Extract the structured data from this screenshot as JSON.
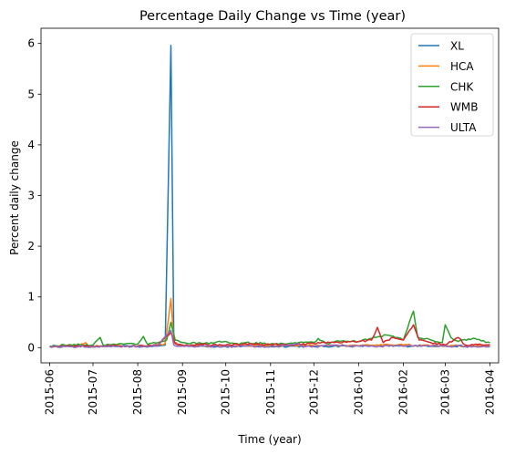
{
  "chart_data": {
    "type": "line",
    "title": "Percentage Daily Change vs Time (year)",
    "xlabel": "Time (year)",
    "ylabel": "Percent daily change",
    "x_range": [
      "2015-05-26",
      "2016-04-07"
    ],
    "ylim": [
      -0.3,
      6.3
    ],
    "grid": false,
    "legend_position": "top-right",
    "x_ticks": [
      "2015-06",
      "2015-07",
      "2015-08",
      "2015-09",
      "2015-10",
      "2015-11",
      "2015-12",
      "2016-01",
      "2016-02",
      "2016-03",
      "2016-04"
    ],
    "y_ticks": [
      0,
      1,
      2,
      3,
      4,
      5,
      6
    ],
    "series": [
      {
        "name": "XL",
        "color": "#1f77b4",
        "points": [
          [
            "2015-06-01",
            0.02
          ],
          [
            "2015-06-15",
            0.03
          ],
          [
            "2015-07-01",
            0.02
          ],
          [
            "2015-07-15",
            0.03
          ],
          [
            "2015-08-01",
            0.02
          ],
          [
            "2015-08-15",
            0.03
          ],
          [
            "2015-08-20",
            0.05
          ],
          [
            "2015-08-24",
            5.96
          ],
          [
            "2015-08-26",
            0.1
          ],
          [
            "2015-09-01",
            0.04
          ],
          [
            "2015-09-15",
            0.03
          ],
          [
            "2015-10-01",
            0.02
          ],
          [
            "2015-10-15",
            0.03
          ],
          [
            "2015-11-01",
            0.02
          ],
          [
            "2015-11-15",
            0.03
          ],
          [
            "2015-12-01",
            0.02
          ],
          [
            "2015-12-15",
            0.03
          ],
          [
            "2016-01-01",
            0.03
          ],
          [
            "2016-01-15",
            0.04
          ],
          [
            "2016-02-01",
            0.03
          ],
          [
            "2016-02-15",
            0.04
          ],
          [
            "2016-03-01",
            0.03
          ],
          [
            "2016-03-15",
            0.03
          ],
          [
            "2016-04-01",
            0.02
          ]
        ]
      },
      {
        "name": "HCA",
        "color": "#ff7f0e",
        "points": [
          [
            "2015-06-01",
            0.03
          ],
          [
            "2015-06-20",
            0.04
          ],
          [
            "2015-06-26",
            0.1
          ],
          [
            "2015-06-28",
            0.02
          ],
          [
            "2015-07-15",
            0.04
          ],
          [
            "2015-08-01",
            0.03
          ],
          [
            "2015-08-15",
            0.05
          ],
          [
            "2015-08-20",
            0.08
          ],
          [
            "2015-08-24",
            0.97
          ],
          [
            "2015-08-26",
            0.1
          ],
          [
            "2015-09-01",
            0.04
          ],
          [
            "2015-09-15",
            0.04
          ],
          [
            "2015-10-01",
            0.03
          ],
          [
            "2015-10-15",
            0.04
          ],
          [
            "2015-11-01",
            0.03
          ],
          [
            "2015-11-15",
            0.04
          ],
          [
            "2015-12-01",
            0.04
          ],
          [
            "2015-12-15",
            0.05
          ],
          [
            "2016-01-01",
            0.04
          ],
          [
            "2016-01-15",
            0.05
          ],
          [
            "2016-02-01",
            0.05
          ],
          [
            "2016-02-15",
            0.05
          ],
          [
            "2016-03-01",
            0.04
          ],
          [
            "2016-03-15",
            0.03
          ],
          [
            "2016-04-01",
            0.03
          ]
        ]
      },
      {
        "name": "CHK",
        "color": "#2ca02c",
        "points": [
          [
            "2015-06-01",
            0.03
          ],
          [
            "2015-06-15",
            0.06
          ],
          [
            "2015-07-01",
            0.05
          ],
          [
            "2015-07-06",
            0.2
          ],
          [
            "2015-07-08",
            0.05
          ],
          [
            "2015-07-20",
            0.08
          ],
          [
            "2015-08-01",
            0.07
          ],
          [
            "2015-08-05",
            0.22
          ],
          [
            "2015-08-08",
            0.06
          ],
          [
            "2015-08-15",
            0.1
          ],
          [
            "2015-08-21",
            0.15
          ],
          [
            "2015-08-24",
            0.5
          ],
          [
            "2015-08-27",
            0.15
          ],
          [
            "2015-09-01",
            0.1
          ],
          [
            "2015-09-15",
            0.08
          ],
          [
            "2015-10-01",
            0.12
          ],
          [
            "2015-10-10",
            0.06
          ],
          [
            "2015-10-15",
            0.1
          ],
          [
            "2015-11-01",
            0.07
          ],
          [
            "2015-11-15",
            0.09
          ],
          [
            "2015-12-01",
            0.1
          ],
          [
            "2015-12-04",
            0.18
          ],
          [
            "2015-12-10",
            0.08
          ],
          [
            "2015-12-20",
            0.13
          ],
          [
            "2016-01-01",
            0.12
          ],
          [
            "2016-01-10",
            0.18
          ],
          [
            "2016-01-20",
            0.25
          ],
          [
            "2016-01-28",
            0.2
          ],
          [
            "2016-02-01",
            0.15
          ],
          [
            "2016-02-08",
            0.72
          ],
          [
            "2016-02-11",
            0.2
          ],
          [
            "2016-02-20",
            0.15
          ],
          [
            "2016-02-28",
            0.1
          ],
          [
            "2016-03-01",
            0.45
          ],
          [
            "2016-03-05",
            0.2
          ],
          [
            "2016-03-10",
            0.12
          ],
          [
            "2016-03-20",
            0.18
          ],
          [
            "2016-04-01",
            0.1
          ]
        ]
      },
      {
        "name": "WMB",
        "color": "#d62728",
        "points": [
          [
            "2015-06-01",
            0.02
          ],
          [
            "2015-06-15",
            0.03
          ],
          [
            "2015-07-01",
            0.03
          ],
          [
            "2015-07-15",
            0.04
          ],
          [
            "2015-08-01",
            0.03
          ],
          [
            "2015-08-15",
            0.05
          ],
          [
            "2015-08-24",
            0.3
          ],
          [
            "2015-08-27",
            0.08
          ],
          [
            "2015-09-01",
            0.05
          ],
          [
            "2015-09-15",
            0.06
          ],
          [
            "2015-10-01",
            0.05
          ],
          [
            "2015-10-15",
            0.07
          ],
          [
            "2015-11-01",
            0.06
          ],
          [
            "2015-11-15",
            0.05
          ],
          [
            "2015-12-01",
            0.08
          ],
          [
            "2015-12-15",
            0.1
          ],
          [
            "2016-01-01",
            0.12
          ],
          [
            "2016-01-10",
            0.15
          ],
          [
            "2016-01-14",
            0.4
          ],
          [
            "2016-01-18",
            0.1
          ],
          [
            "2016-01-25",
            0.2
          ],
          [
            "2016-02-01",
            0.15
          ],
          [
            "2016-02-08",
            0.45
          ],
          [
            "2016-02-12",
            0.15
          ],
          [
            "2016-02-20",
            0.1
          ],
          [
            "2016-03-01",
            0.05
          ],
          [
            "2016-03-10",
            0.2
          ],
          [
            "2016-03-15",
            0.05
          ],
          [
            "2016-04-01",
            0.06
          ]
        ]
      },
      {
        "name": "ULTA",
        "color": "#9467bd",
        "points": [
          [
            "2015-06-01",
            0.02
          ],
          [
            "2015-06-15",
            0.02
          ],
          [
            "2015-07-01",
            0.02
          ],
          [
            "2015-07-15",
            0.03
          ],
          [
            "2015-08-01",
            0.02
          ],
          [
            "2015-08-15",
            0.04
          ],
          [
            "2015-08-24",
            0.34
          ],
          [
            "2015-08-26",
            0.05
          ],
          [
            "2015-09-01",
            0.03
          ],
          [
            "2015-09-15",
            0.03
          ],
          [
            "2015-10-01",
            0.02
          ],
          [
            "2015-10-15",
            0.03
          ],
          [
            "2015-11-01",
            0.02
          ],
          [
            "2015-11-20",
            0.08
          ],
          [
            "2015-11-24",
            0.02
          ],
          [
            "2015-12-01",
            0.03
          ],
          [
            "2015-12-15",
            0.04
          ],
          [
            "2016-01-01",
            0.03
          ],
          [
            "2016-01-15",
            0.03
          ],
          [
            "2016-02-01",
            0.03
          ],
          [
            "2016-02-15",
            0.04
          ],
          [
            "2016-03-01",
            0.03
          ],
          [
            "2016-03-15",
            0.02
          ],
          [
            "2016-04-01",
            0.02
          ]
        ]
      }
    ]
  }
}
